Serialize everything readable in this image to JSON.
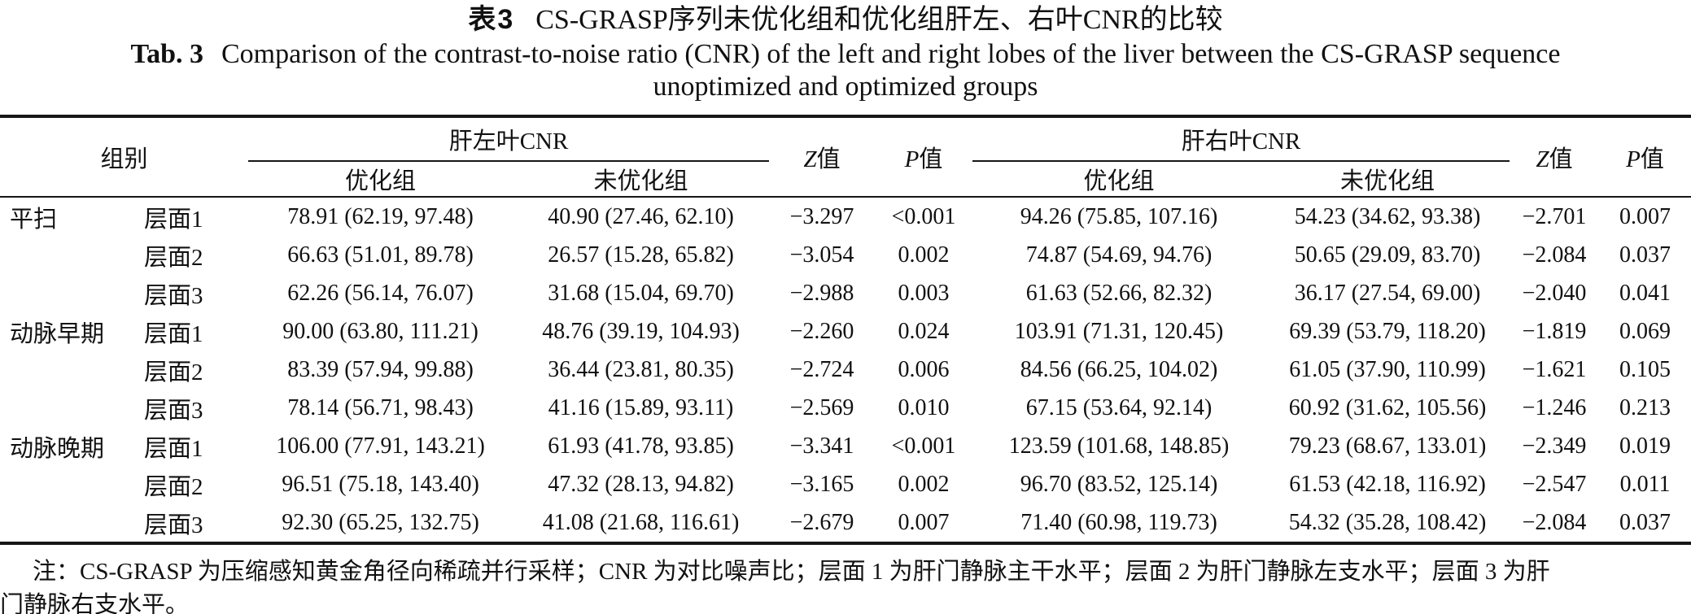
{
  "title": {
    "zh_label": "表3",
    "zh_text": "CS-GRASP序列未优化组和优化组肝左、右叶CNR的比较",
    "en_label": "Tab. 3",
    "en_line1": "Comparison of the contrast-to-noise ratio (CNR) of the left and right lobes of the liver between the CS-GRASP sequence",
    "en_line2": "unoptimized and optimized groups"
  },
  "table": {
    "headers": {
      "group": "组别",
      "left_lobe": "肝左叶CNR",
      "right_lobe": "肝右叶CNR",
      "optimized": "优化组",
      "unoptimized": "未优化组",
      "z_label": "Z",
      "z_suffix": "值",
      "p_label": "P",
      "p_suffix": "值"
    },
    "rows": [
      {
        "group": "平扫",
        "slice": "层面1",
        "left_opt": "78.91 (62.19, 97.48)",
        "left_unopt": "40.90 (27.46, 62.10)",
        "z1": "−3.297",
        "p1": "<0.001",
        "right_opt": "94.26 (75.85, 107.16)",
        "right_unopt": "54.23 (34.62, 93.38)",
        "z2": "−2.701",
        "p2": "0.007"
      },
      {
        "group": "",
        "slice": "层面2",
        "left_opt": "66.63 (51.01, 89.78)",
        "left_unopt": "26.57 (15.28, 65.82)",
        "z1": "−3.054",
        "p1": "0.002",
        "right_opt": "74.87 (54.69, 94.76)",
        "right_unopt": "50.65 (29.09, 83.70)",
        "z2": "−2.084",
        "p2": "0.037"
      },
      {
        "group": "",
        "slice": "层面3",
        "left_opt": "62.26 (56.14, 76.07)",
        "left_unopt": "31.68 (15.04, 69.70)",
        "z1": "−2.988",
        "p1": "0.003",
        "right_opt": "61.63 (52.66, 82.32)",
        "right_unopt": "36.17 (27.54, 69.00)",
        "z2": "−2.040",
        "p2": "0.041"
      },
      {
        "group": "动脉早期",
        "slice": "层面1",
        "left_opt": "90.00 (63.80, 111.21)",
        "left_unopt": "48.76 (39.19, 104.93)",
        "z1": "−2.260",
        "p1": "0.024",
        "right_opt": "103.91 (71.31, 120.45)",
        "right_unopt": "69.39 (53.79, 118.20)",
        "z2": "−1.819",
        "p2": "0.069"
      },
      {
        "group": "",
        "slice": "层面2",
        "left_opt": "83.39 (57.94, 99.88)",
        "left_unopt": "36.44 (23.81, 80.35)",
        "z1": "−2.724",
        "p1": "0.006",
        "right_opt": "84.56 (66.25, 104.02)",
        "right_unopt": "61.05 (37.90, 110.99)",
        "z2": "−1.621",
        "p2": "0.105"
      },
      {
        "group": "",
        "slice": "层面3",
        "left_opt": "78.14 (56.71, 98.43)",
        "left_unopt": "41.16 (15.89, 93.11)",
        "z1": "−2.569",
        "p1": "0.010",
        "right_opt": "67.15 (53.64, 92.14)",
        "right_unopt": "60.92 (31.62, 105.56)",
        "z2": "−1.246",
        "p2": "0.213"
      },
      {
        "group": "动脉晚期",
        "slice": "层面1",
        "left_opt": "106.00 (77.91, 143.21)",
        "left_unopt": "61.93 (41.78, 93.85)",
        "z1": "−3.341",
        "p1": "<0.001",
        "right_opt": "123.59 (101.68, 148.85)",
        "right_unopt": "79.23 (68.67, 133.01)",
        "z2": "−2.349",
        "p2": "0.019"
      },
      {
        "group": "",
        "slice": "层面2",
        "left_opt": "96.51 (75.18, 143.40)",
        "left_unopt": "47.32 (28.13, 94.82)",
        "z1": "−3.165",
        "p1": "0.002",
        "right_opt": "96.70 (83.52, 125.14)",
        "right_unopt": "61.53 (42.18, 116.92)",
        "z2": "−2.547",
        "p2": "0.011"
      },
      {
        "group": "",
        "slice": "层面3",
        "left_opt": "92.30 (65.25, 132.75)",
        "left_unopt": "41.08 (21.68, 116.61)",
        "z1": "−2.679",
        "p1": "0.007",
        "right_opt": "71.40 (60.98, 119.73)",
        "right_unopt": "54.32 (35.28, 108.42)",
        "z2": "−2.084",
        "p2": "0.037"
      }
    ]
  },
  "note": {
    "line1": "注：CS-GRASP 为压缩感知黄金角径向稀疏并行采样；CNR 为对比噪声比；层面 1 为肝门静脉主干水平；层面 2 为肝门静脉左支水平；层面 3 为肝",
    "line2": "门静脉右支水平。"
  }
}
